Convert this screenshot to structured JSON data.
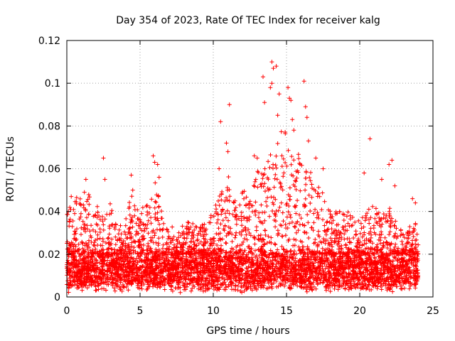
{
  "chart_data": {
    "type": "scatter",
    "title": "Day 354 of 2023, Rate Of TEC Index for receiver kalg",
    "xlabel": "GPS time / hours",
    "ylabel": "ROTI / TECUs",
    "xlim": [
      0,
      25
    ],
    "ylim": [
      0,
      0.12
    ],
    "xticks": [
      0,
      5,
      10,
      15,
      20,
      25
    ],
    "xtick_labels": [
      "0",
      "5",
      "10",
      "15",
      "20",
      "25"
    ],
    "yticks": [
      0,
      0.02,
      0.04,
      0.06,
      0.08,
      0.1,
      0.12
    ],
    "ytick_labels": [
      "0",
      "0.02",
      "0.04",
      "0.06",
      "0.08",
      "0.1",
      "0.12"
    ],
    "grid": true,
    "marker": "plus",
    "series": [
      {
        "name": "ROTI",
        "color": "#ff0000",
        "x_range": [
          0,
          24
        ],
        "baseline_band": [
          0.005,
          0.02
        ],
        "envelope": {
          "x": [
            0,
            0.5,
            1,
            1.5,
            2,
            2.5,
            3,
            3.5,
            4,
            4.5,
            5,
            5.5,
            6,
            6.5,
            7,
            7.5,
            8,
            8.5,
            9,
            9.5,
            10,
            10.5,
            11,
            11.5,
            12,
            12.5,
            13,
            13.5,
            14,
            14.5,
            15,
            15.5,
            16,
            16.5,
            17,
            17.5,
            18,
            18.5,
            19,
            19.5,
            20,
            20.5,
            21,
            21.5,
            22,
            22.5,
            23,
            23.5,
            24
          ],
          "y": [
            0.04,
            0.045,
            0.05,
            0.048,
            0.04,
            0.055,
            0.045,
            0.035,
            0.04,
            0.05,
            0.04,
            0.045,
            0.055,
            0.04,
            0.035,
            0.03,
            0.035,
            0.035,
            0.035,
            0.035,
            0.04,
            0.05,
            0.06,
            0.045,
            0.05,
            0.05,
            0.06,
            0.06,
            0.07,
            0.075,
            0.085,
            0.065,
            0.07,
            0.06,
            0.055,
            0.05,
            0.04,
            0.04,
            0.04,
            0.04,
            0.04,
            0.04,
            0.045,
            0.04,
            0.045,
            0.035,
            0.03,
            0.035,
            0.035
          ]
        },
        "peaks": [
          {
            "x": 0.1,
            "y": 0.04
          },
          {
            "x": 0.3,
            "y": 0.047
          },
          {
            "x": 1.2,
            "y": 0.049
          },
          {
            "x": 1.3,
            "y": 0.055
          },
          {
            "x": 2.5,
            "y": 0.065
          },
          {
            "x": 2.6,
            "y": 0.055
          },
          {
            "x": 4.4,
            "y": 0.057
          },
          {
            "x": 4.5,
            "y": 0.05
          },
          {
            "x": 5.9,
            "y": 0.066
          },
          {
            "x": 6.0,
            "y": 0.063
          },
          {
            "x": 6.2,
            "y": 0.062
          },
          {
            "x": 6.3,
            "y": 0.056
          },
          {
            "x": 10.5,
            "y": 0.082
          },
          {
            "x": 10.4,
            "y": 0.06
          },
          {
            "x": 11.1,
            "y": 0.09
          },
          {
            "x": 10.9,
            "y": 0.072
          },
          {
            "x": 11.0,
            "y": 0.068
          },
          {
            "x": 12.8,
            "y": 0.066
          },
          {
            "x": 13.0,
            "y": 0.065
          },
          {
            "x": 13.5,
            "y": 0.091
          },
          {
            "x": 13.4,
            "y": 0.103
          },
          {
            "x": 14.0,
            "y": 0.11
          },
          {
            "x": 14.1,
            "y": 0.107
          },
          {
            "x": 14.3,
            "y": 0.108
          },
          {
            "x": 13.9,
            "y": 0.098
          },
          {
            "x": 14.0,
            "y": 0.1
          },
          {
            "x": 14.5,
            "y": 0.095
          },
          {
            "x": 14.4,
            "y": 0.085
          },
          {
            "x": 15.1,
            "y": 0.098
          },
          {
            "x": 15.2,
            "y": 0.093
          },
          {
            "x": 15.3,
            "y": 0.092
          },
          {
            "x": 15.4,
            "y": 0.083
          },
          {
            "x": 15.5,
            "y": 0.078
          },
          {
            "x": 16.2,
            "y": 0.101
          },
          {
            "x": 16.3,
            "y": 0.089
          },
          {
            "x": 16.4,
            "y": 0.084
          },
          {
            "x": 16.5,
            "y": 0.073
          },
          {
            "x": 17.0,
            "y": 0.065
          },
          {
            "x": 17.5,
            "y": 0.06
          },
          {
            "x": 20.3,
            "y": 0.058
          },
          {
            "x": 20.7,
            "y": 0.074
          },
          {
            "x": 22.0,
            "y": 0.062
          },
          {
            "x": 22.2,
            "y": 0.064
          },
          {
            "x": 22.4,
            "y": 0.052
          },
          {
            "x": 21.5,
            "y": 0.055
          },
          {
            "x": 23.6,
            "y": 0.046
          },
          {
            "x": 23.8,
            "y": 0.044
          },
          {
            "x": 13.3,
            "y": 0.005
          }
        ]
      }
    ]
  }
}
